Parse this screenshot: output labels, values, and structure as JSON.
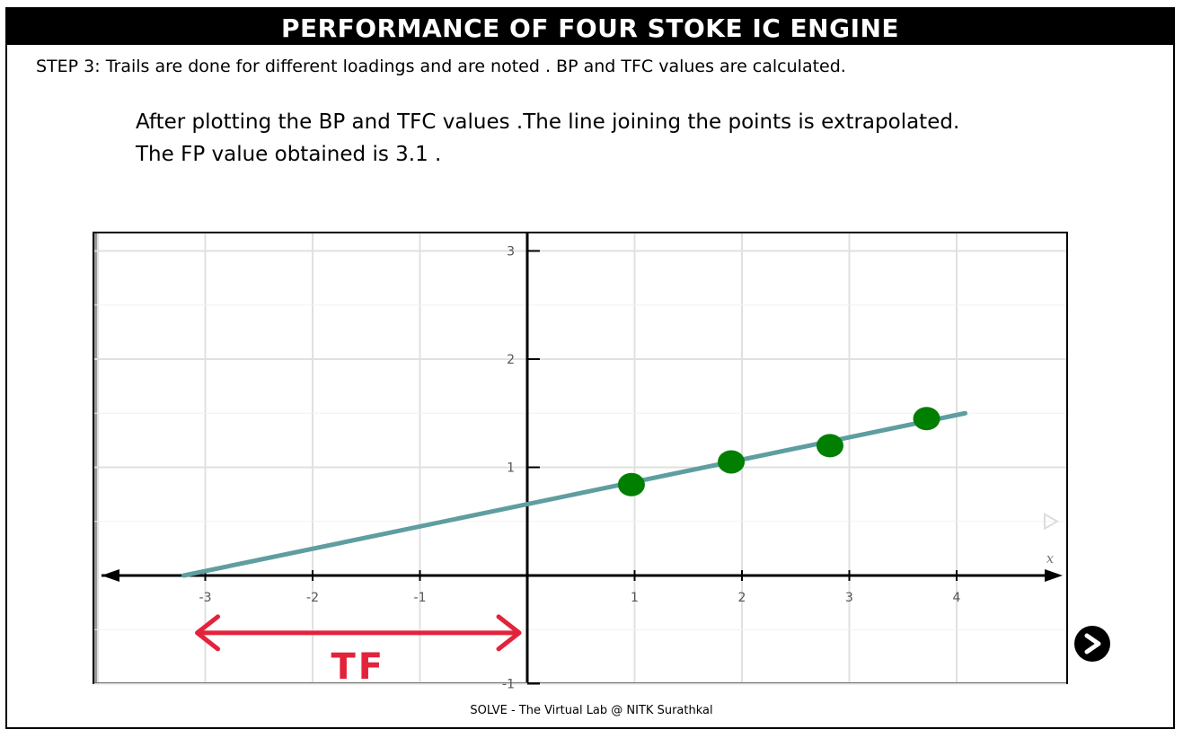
{
  "header": {
    "title": "PERFORMANCE OF FOUR STOKE IC ENGINE"
  },
  "instructions": {
    "step": "STEP 3: Trails are done for different loadings and are noted . BP and TFC values are calculated.",
    "line1": "After plotting the BP and TFC values .The line joining the points is extrapolated.",
    "line2": "The FP value obtained is 3.1 ."
  },
  "chart_data": {
    "type": "scatter",
    "x_ticks": [
      "-3",
      "-2",
      "-1",
      "1",
      "2",
      "3",
      "4"
    ],
    "y_ticks": [
      "3",
      "2",
      "1",
      "-1"
    ],
    "xlabel": "x",
    "xlim": [
      -4,
      5
    ],
    "ylim": [
      -1,
      3.2
    ],
    "points": [
      {
        "x": 0.97,
        "y": 0.84
      },
      {
        "x": 1.9,
        "y": 1.05
      },
      {
        "x": 2.82,
        "y": 1.2
      },
      {
        "x": 3.72,
        "y": 1.45
      }
    ],
    "fit_line": {
      "x_start": -3.2,
      "y_start": 0,
      "x_end": 4.08,
      "y_end": 1.5
    },
    "tf_range": [
      -3.1,
      -0.05
    ],
    "tf_label": "TF",
    "colors": {
      "points": "#007f00",
      "line": "#5f9ea0",
      "arrow": "#e3233b",
      "grid": "#e0e0e0",
      "axis": "#000000"
    }
  },
  "footer": {
    "text": "SOLVE - The Virtual Lab @ NITK Surathkal"
  },
  "nav": {
    "next_icon": "next-arrow-icon"
  }
}
